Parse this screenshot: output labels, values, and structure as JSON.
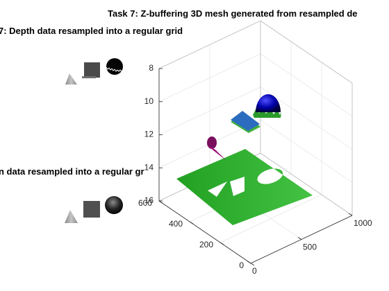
{
  "titles": {
    "main": "Task 7: Z-buffering 3D mesh generated from resampled de",
    "subplot_1": "7: Depth data resampled into a regular grid",
    "subplot_2": "n data resampled into a regular gr"
  },
  "chart_data": [
    {
      "type": "surface",
      "title": "Task 7: Z-buffering 3D mesh generated from resampled de",
      "x_ticks": [
        0,
        500,
        1000
      ],
      "y_ticks": [
        0,
        200,
        400,
        600
      ],
      "z_ticks": [
        8,
        10,
        12,
        14,
        16
      ],
      "z_axis_reversed": true,
      "xlim": [
        0,
        1000
      ],
      "ylim": [
        0,
        600
      ],
      "zlim": [
        8,
        16
      ],
      "grid": true,
      "objects": [
        {
          "name": "floor plane with cut-out shapes",
          "color": "#2ca02c",
          "depth": 15
        },
        {
          "name": "box top",
          "color": "#2b6cbf",
          "depth": 11.3
        },
        {
          "name": "cone",
          "color": "#c2188d",
          "depth": 13.2
        },
        {
          "name": "sphere",
          "color": "#000080",
          "depth": 10.2
        }
      ]
    },
    {
      "type": "image",
      "title": "7: Depth data resampled into a regular grid",
      "objects": [
        "cone",
        "cube",
        "sphere"
      ]
    },
    {
      "type": "image",
      "title": "n data resampled into a regular gr",
      "objects": [
        "cone",
        "cube",
        "sphere"
      ]
    }
  ]
}
